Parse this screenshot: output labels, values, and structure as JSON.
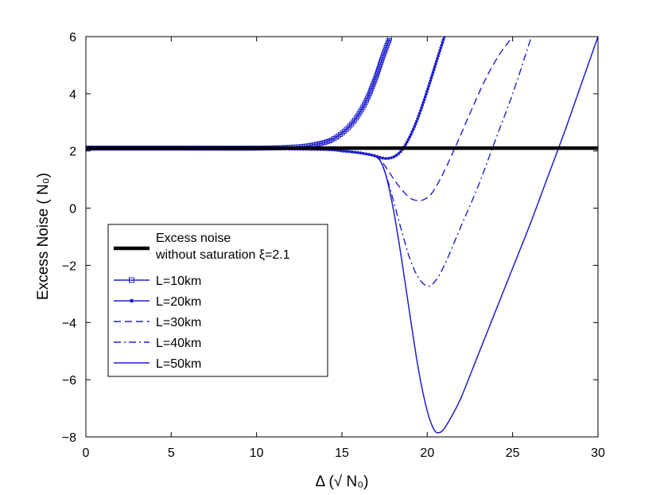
{
  "chart_data": {
    "type": "line",
    "xlabel": "Δ (√ N₀)",
    "ylabel": "Excess Noise  ( N₀)",
    "xlim": [
      0,
      30
    ],
    "ylim": [
      -8,
      6
    ],
    "xticks": [
      0,
      5,
      10,
      15,
      20,
      25,
      30
    ],
    "yticks": [
      -8,
      -6,
      -4,
      -2,
      0,
      2,
      4,
      6
    ],
    "xtick_labels": [
      "0",
      "5",
      "10",
      "15",
      "20",
      "25",
      "30"
    ],
    "ytick_labels": [
      "−8",
      "−6",
      "−4",
      "−2",
      "0",
      "2",
      "4",
      "6"
    ],
    "grid": false,
    "legend_position": "lower-left",
    "line_color": "#1f1fd0",
    "baseline_color": "#000000",
    "series": [
      {
        "name": "Excess noise without saturation ξ=2.1",
        "legend_lines": [
          "Excess noise",
          "without saturation ξ=2.1"
        ],
        "style": "thick-solid",
        "x": [
          0,
          30
        ],
        "y": [
          2.1,
          2.1
        ]
      },
      {
        "name": "L=10km",
        "style": "solid-square-markers",
        "x": [
          0,
          5,
          10,
          12,
          13,
          14,
          14.5,
          15,
          15.5,
          16,
          16.5,
          17,
          17.4,
          17.8
        ],
        "y": [
          2.1,
          2.1,
          2.1,
          2.13,
          2.18,
          2.3,
          2.42,
          2.62,
          2.9,
          3.3,
          3.85,
          4.6,
          5.3,
          5.95
        ]
      },
      {
        "name": "L=20km",
        "style": "solid-dot-markers",
        "x": [
          0,
          5,
          10,
          14,
          15,
          16,
          16.8,
          17.4,
          17.8,
          18.2,
          18.6,
          19.1,
          19.6,
          20.1,
          20.6,
          21.0
        ],
        "y": [
          2.1,
          2.1,
          2.08,
          2.05,
          2.0,
          1.94,
          1.85,
          1.75,
          1.75,
          1.85,
          2.1,
          2.65,
          3.4,
          4.3,
          5.25,
          6.0
        ]
      },
      {
        "name": "L=30km",
        "style": "dashed",
        "x": [
          0,
          5,
          10,
          14,
          15,
          16,
          17,
          17.5,
          18,
          18.5,
          19,
          19.4,
          19.8,
          20.3,
          21,
          21.8,
          22.6,
          23.4,
          24.2,
          25.0
        ],
        "y": [
          2.1,
          2.1,
          2.08,
          2.05,
          2.0,
          1.92,
          1.8,
          1.5,
          1.05,
          0.65,
          0.35,
          0.27,
          0.3,
          0.55,
          1.3,
          2.35,
          3.45,
          4.5,
          5.35,
          6.0
        ]
      },
      {
        "name": "L=40km",
        "style": "dash-dot",
        "x": [
          0,
          5,
          10,
          14,
          15,
          16,
          17,
          17.5,
          18,
          18.5,
          19,
          19.5,
          20,
          20.4,
          21,
          22,
          23,
          24,
          25,
          26.1
        ],
        "y": [
          2.1,
          2.1,
          2.08,
          2.05,
          2.0,
          1.92,
          1.8,
          1.3,
          0.3,
          -0.8,
          -1.8,
          -2.45,
          -2.72,
          -2.6,
          -2.0,
          -0.6,
          0.8,
          2.4,
          4.0,
          6.0
        ]
      },
      {
        "name": "L=50km",
        "style": "solid",
        "x": [
          0,
          5,
          10,
          14,
          15,
          16,
          17,
          17.5,
          18,
          18.5,
          19,
          19.5,
          20,
          20.4,
          20.7,
          21,
          21.5,
          22,
          23,
          24,
          25,
          26,
          27,
          28,
          29,
          30
        ],
        "y": [
          2.1,
          2.1,
          2.08,
          2.05,
          2.0,
          1.92,
          1.8,
          1.3,
          0.0,
          -1.8,
          -3.8,
          -5.7,
          -7.1,
          -7.75,
          -7.85,
          -7.7,
          -7.2,
          -6.6,
          -5.1,
          -3.6,
          -2.1,
          -0.6,
          1.0,
          2.6,
          4.3,
          6.0
        ]
      }
    ]
  }
}
